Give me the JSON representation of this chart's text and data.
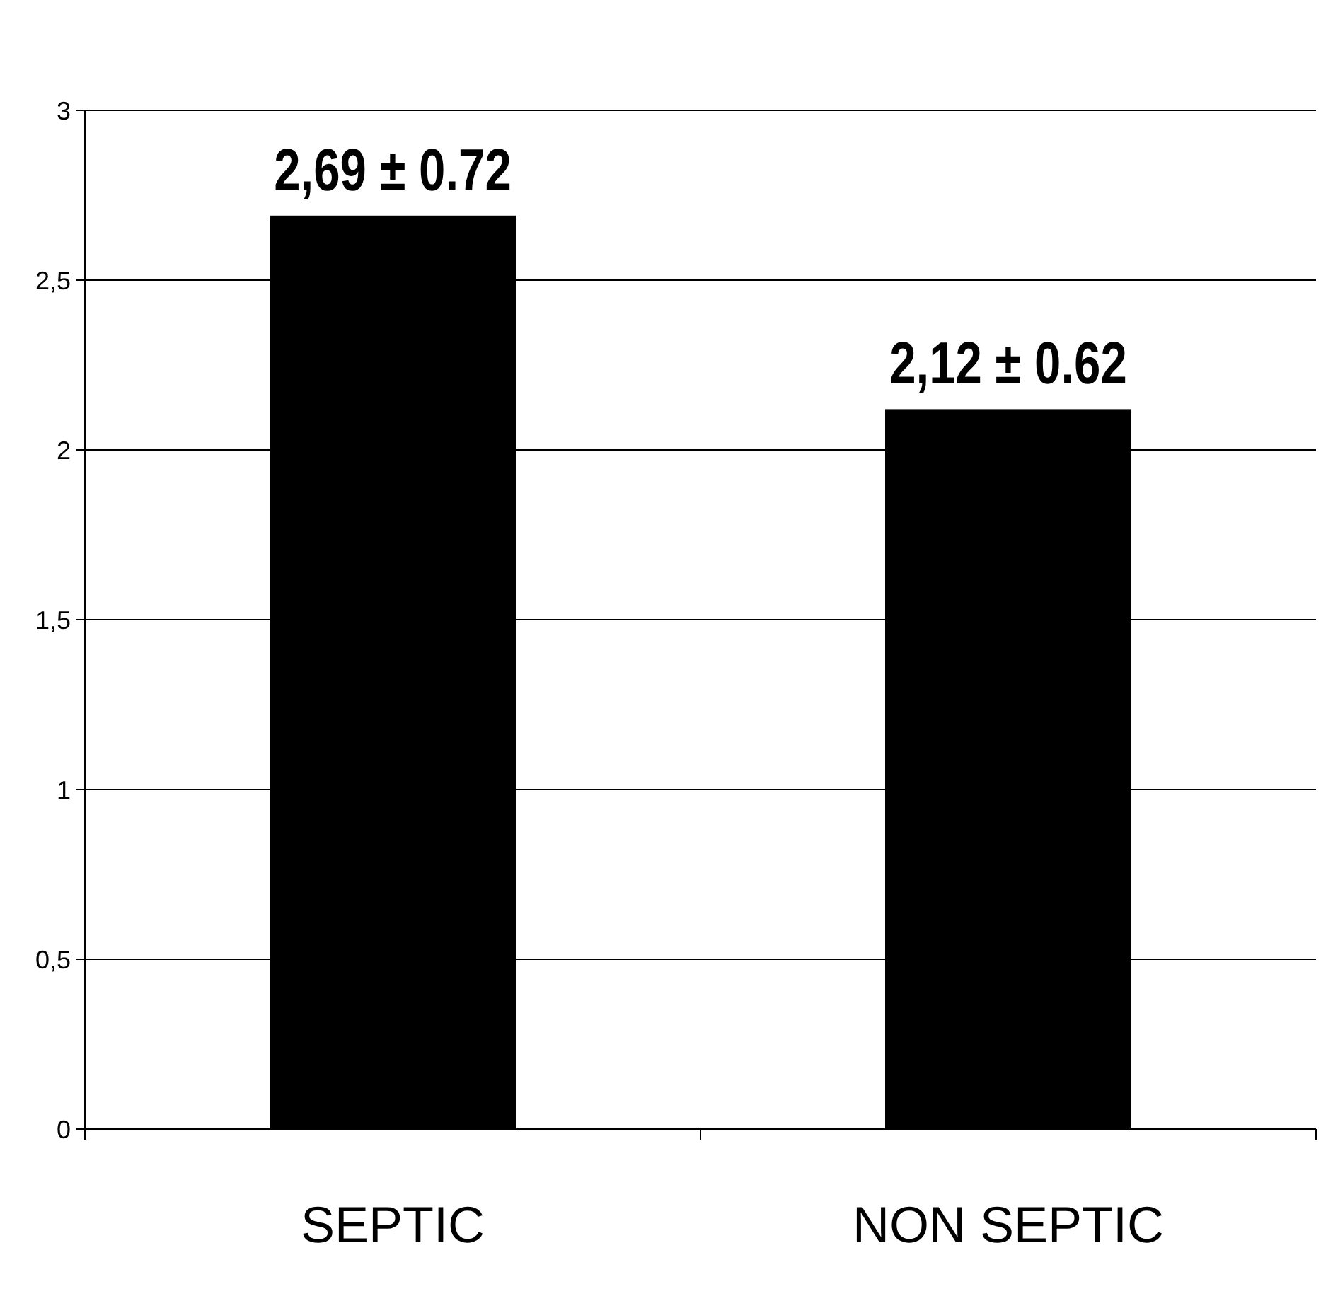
{
  "chart_data": {
    "type": "bar",
    "categories": [
      "SEPTIC",
      "NON SEPTIC"
    ],
    "values": [
      2.69,
      2.12
    ],
    "color": "#000000",
    "value_labels": [
      "2,69 ± 0.72",
      "2,12 ± 0.62"
    ],
    "ylim": [
      0,
      3
    ],
    "yticks": [
      0,
      {
        "value": 0.5,
        "label": "0,5"
      },
      1,
      {
        "value": 1.5,
        "label": "1,5"
      },
      2,
      {
        "value": 2.5,
        "label": "2,5"
      },
      3
    ],
    "grid": "y"
  }
}
